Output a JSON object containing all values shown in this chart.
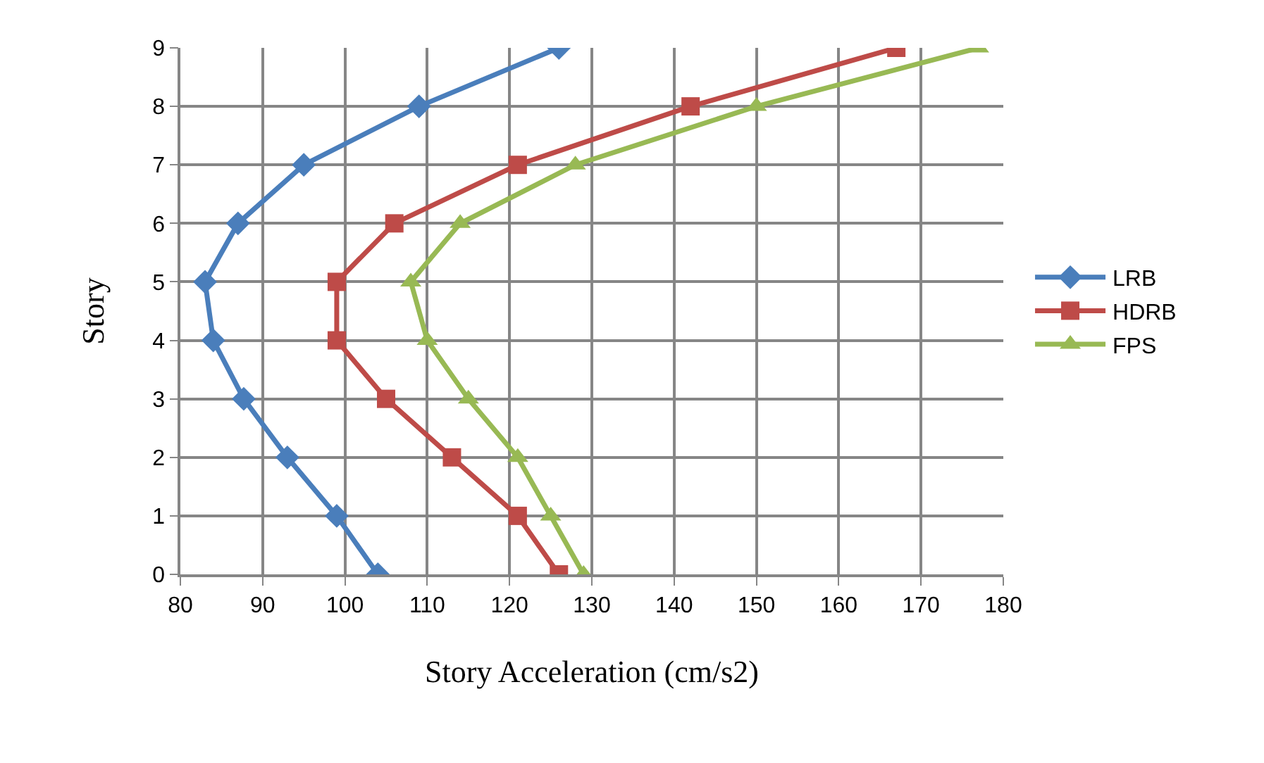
{
  "chart_data": {
    "type": "line",
    "xlabel": "Story Acceleration (cm/s2)",
    "ylabel": "Story",
    "xlim": [
      80,
      180
    ],
    "xticks": [
      80,
      90,
      100,
      110,
      120,
      130,
      140,
      150,
      160,
      170,
      180
    ],
    "ylim": [
      0,
      9
    ],
    "yticks": [
      0,
      1,
      2,
      3,
      4,
      5,
      6,
      7,
      8,
      9
    ],
    "grid": true,
    "legend": "right",
    "line_style": "solid",
    "series": [
      {
        "name": "LRB",
        "color": "#4a7ebb",
        "marker": "diamond",
        "x": [
          104,
          99,
          93,
          87.7,
          84,
          83,
          87,
          95,
          109,
          126
        ],
        "values": [
          0,
          1,
          2,
          3,
          4,
          5,
          6,
          7,
          8,
          9
        ]
      },
      {
        "name": "HDRB",
        "color": "#be4b48",
        "marker": "square",
        "x": [
          126,
          121,
          113,
          105,
          99,
          99,
          106,
          121,
          142,
          167
        ],
        "values": [
          0,
          1,
          2,
          3,
          4,
          5,
          6,
          7,
          8,
          9
        ]
      },
      {
        "name": "FPS",
        "color": "#98b954",
        "marker": "triangle",
        "x": [
          129,
          125,
          121,
          115,
          110,
          108,
          114,
          128,
          150,
          177
        ],
        "values": [
          0,
          1,
          2,
          3,
          4,
          5,
          6,
          7,
          8,
          9
        ]
      }
    ]
  }
}
